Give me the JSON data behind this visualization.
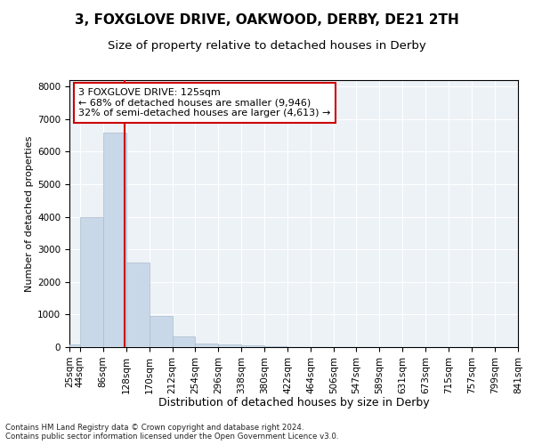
{
  "title": "3, FOXGLOVE DRIVE, OAKWOOD, DERBY, DE21 2TH",
  "subtitle": "Size of property relative to detached houses in Derby",
  "xlabel": "Distribution of detached houses by size in Derby",
  "ylabel": "Number of detached properties",
  "footer": "Contains HM Land Registry data © Crown copyright and database right 2024.\nContains public sector information licensed under the Open Government Licence v3.0.",
  "bin_edges": [
    25,
    44,
    86,
    128,
    170,
    212,
    254,
    296,
    338,
    380,
    422,
    464,
    506,
    547,
    589,
    631,
    673,
    715,
    757,
    799,
    841
  ],
  "bar_heights": [
    75,
    4000,
    6600,
    2600,
    950,
    325,
    100,
    75,
    50,
    30,
    10,
    5,
    3,
    2,
    1,
    1,
    0,
    0,
    0,
    0
  ],
  "bar_color": "#c8d8e8",
  "bar_edge_color": "#aabccc",
  "property_size": 125,
  "vline_color": "#cc0000",
  "annotation_line1": "3 FOXGLOVE DRIVE: 125sqm",
  "annotation_line2": "← 68% of detached houses are smaller (9,946)",
  "annotation_line3": "32% of semi-detached houses are larger (4,613) →",
  "annotation_box_color": "#cc0000",
  "ylim": [
    0,
    8200
  ],
  "yticks": [
    0,
    1000,
    2000,
    3000,
    4000,
    5000,
    6000,
    7000,
    8000
  ],
  "background_color": "#edf2f7",
  "grid_color": "#ffffff",
  "title_fontsize": 11,
  "subtitle_fontsize": 9.5,
  "xlabel_fontsize": 9,
  "ylabel_fontsize": 8,
  "tick_fontsize": 7.5,
  "annotation_fontsize": 8
}
